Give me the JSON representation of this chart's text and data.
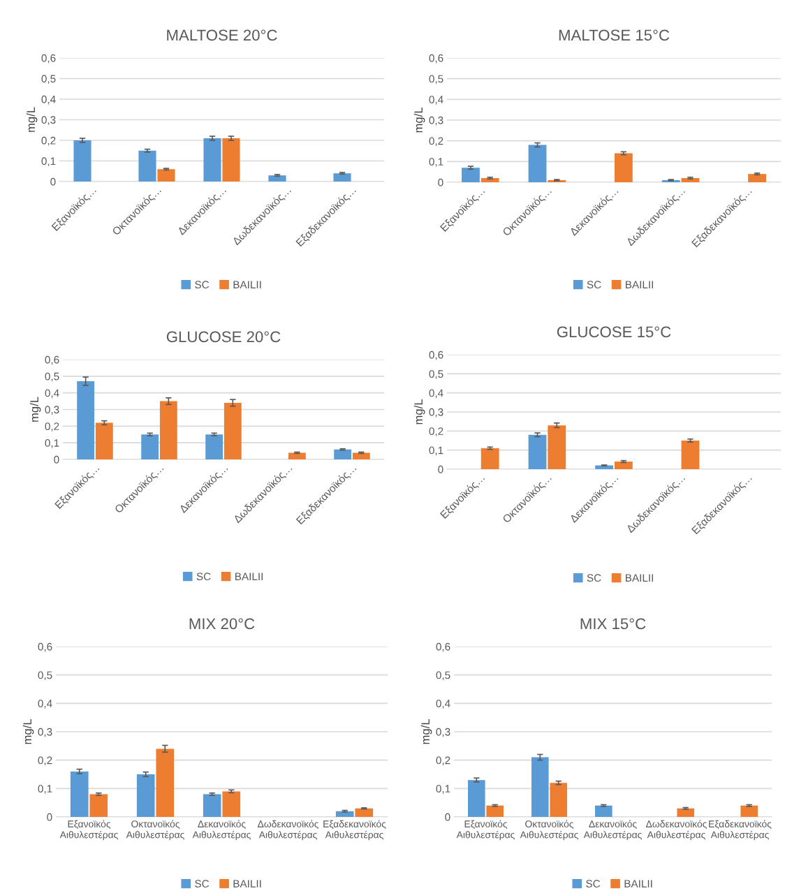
{
  "chart_data": [
    {
      "type": "bar",
      "title": "MALTOSE 20°C",
      "ylabel": "mg/L",
      "categories": [
        "Εξανοϊκός…",
        "Οκτανοϊκός…",
        "Δεκανοϊκός…",
        "Δωδεκανοϊκός…",
        "Εξαδεκανοϊκός…"
      ],
      "series": [
        {
          "name": "SC",
          "color": "#5b9bd5",
          "values": [
            0.2,
            0.15,
            0.21,
            0.03,
            0.04
          ],
          "errors": [
            0.01,
            0.007,
            0.01,
            0.004,
            0.004
          ]
        },
        {
          "name": "BAILII",
          "color": "#ed7d31",
          "values": [
            null,
            0.06,
            0.21,
            null,
            null
          ],
          "errors": [
            null,
            0.004,
            0.01,
            null,
            null
          ]
        }
      ],
      "ylim": [
        0,
        0.6
      ],
      "yticks": [
        0,
        {
          "value": 0.1,
          "label": "0,1"
        },
        {
          "value": 0.2,
          "label": "0,2"
        },
        {
          "value": 0.3,
          "label": "0,3"
        },
        {
          "value": 0.4,
          "label": "0,4"
        },
        {
          "value": 0.5,
          "label": "0,5"
        },
        {
          "value": 0.6,
          "label": "0,6"
        }
      ],
      "grid": "y",
      "legend": "bottom"
    },
    {
      "type": "bar",
      "title": "MALTOSE 15°C",
      "ylabel": "mg/L",
      "categories": [
        "Εξανοϊκός…",
        "Οκτανοϊκός…",
        "Δεκανοϊκός…",
        "Δωδεκανοϊκός…",
        "Εξαδεκανοϊκός…"
      ],
      "series": [
        {
          "name": "SC",
          "color": "#5b9bd5",
          "values": [
            0.07,
            0.18,
            null,
            0.01,
            null
          ],
          "errors": [
            0.007,
            0.01,
            null,
            0.003,
            null
          ]
        },
        {
          "name": "BAILII",
          "color": "#ed7d31",
          "values": [
            0.02,
            0.01,
            0.14,
            0.02,
            0.04
          ],
          "errors": [
            0.004,
            0.003,
            0.007,
            0.004,
            0.004
          ]
        }
      ],
      "ylim": [
        0,
        0.6
      ],
      "yticks": [
        0,
        {
          "value": 0.1,
          "label": "0,1"
        },
        {
          "value": 0.2,
          "label": "0,2"
        },
        {
          "value": 0.3,
          "label": "0,3"
        },
        {
          "value": 0.4,
          "label": "0,4"
        },
        {
          "value": 0.5,
          "label": "0,5"
        },
        {
          "value": 0.6,
          "label": "0,6"
        }
      ],
      "grid": "y",
      "legend": "bottom"
    },
    {
      "type": "bar",
      "title": "GLUCOSE 20°C",
      "ylabel": "mg/L",
      "categories": [
        "Εξανοϊκός…",
        "Οκτανοϊκός…",
        "Δεκανοϊκός…",
        "Δωδεκανοϊκός…",
        "Εξαδεκανοϊκός…"
      ],
      "series": [
        {
          "name": "SC",
          "color": "#5b9bd5",
          "values": [
            0.47,
            0.15,
            0.15,
            null,
            0.06
          ],
          "errors": [
            0.025,
            0.008,
            0.008,
            null,
            0.004
          ]
        },
        {
          "name": "BAILII",
          "color": "#ed7d31",
          "values": [
            0.22,
            0.35,
            0.34,
            0.04,
            0.04
          ],
          "errors": [
            0.012,
            0.02,
            0.02,
            0.004,
            0.004
          ]
        }
      ],
      "ylim": [
        0,
        0.6
      ],
      "yticks": [
        0,
        {
          "value": 0.1,
          "label": "0,1"
        },
        {
          "value": 0.2,
          "label": "0,2"
        },
        {
          "value": 0.3,
          "label": "0,3"
        },
        {
          "value": 0.4,
          "label": "0,4"
        },
        {
          "value": 0.5,
          "label": "0,5"
        },
        {
          "value": 0.6,
          "label": "0,6"
        }
      ],
      "grid": "y",
      "legend": "bottom"
    },
    {
      "type": "bar",
      "title": "GLUCOSE 15°C",
      "ylabel": "mg/L",
      "categories": [
        "Εξανοϊκός…",
        "Οκτανοϊκός…",
        "Δεκανοϊκός…",
        "Δωδεκανοϊκός…",
        "Εξαδεκανοϊκός…"
      ],
      "series": [
        {
          "name": "SC",
          "color": "#5b9bd5",
          "values": [
            null,
            0.18,
            0.02,
            null,
            null
          ],
          "errors": [
            null,
            0.01,
            0.002,
            null,
            null
          ]
        },
        {
          "name": "BAILII",
          "color": "#ed7d31",
          "values": [
            0.11,
            0.23,
            0.04,
            0.15,
            null
          ],
          "errors": [
            0.006,
            0.012,
            0.005,
            0.008,
            null
          ]
        }
      ],
      "ylim": [
        0,
        0.6
      ],
      "yticks": [
        0,
        {
          "value": 0.1,
          "label": "0,1"
        },
        {
          "value": 0.2,
          "label": "0,2"
        },
        {
          "value": 0.3,
          "label": "0,3"
        },
        {
          "value": 0.4,
          "label": "0,4"
        },
        {
          "value": 0.5,
          "label": "0,5"
        },
        {
          "value": 0.6,
          "label": "0,6"
        }
      ],
      "grid": "y",
      "legend": "bottom"
    },
    {
      "type": "bar",
      "title": "MIX 20°C",
      "ylabel": "mg/L",
      "categories": [
        "Εξανοϊκός\nΑιθυλεστέρας",
        "Οκτανοϊκός\nΑιθυλεστέρας",
        "Δεκανοϊκός\nΑιθυλεστέρας",
        "Δωδεκανοϊκός\nΑιθυλεστέρας",
        "Εξαδεκανοϊκός\nΑιθυλεστέρας"
      ],
      "series": [
        {
          "name": "SC",
          "color": "#5b9bd5",
          "values": [
            0.16,
            0.15,
            0.08,
            null,
            0.02
          ],
          "errors": [
            0.008,
            0.008,
            0.004,
            null,
            0.003
          ]
        },
        {
          "name": "BAILII",
          "color": "#ed7d31",
          "values": [
            0.08,
            0.24,
            0.09,
            null,
            0.03
          ],
          "errors": [
            0.004,
            0.012,
            0.005,
            null,
            0.002
          ]
        }
      ],
      "ylim": [
        0,
        0.6
      ],
      "yticks": [
        0,
        {
          "value": 0.1,
          "label": "0,1"
        },
        {
          "value": 0.2,
          "label": "0,2"
        },
        {
          "value": 0.3,
          "label": "0,3"
        },
        {
          "value": 0.4,
          "label": "0,4"
        },
        {
          "value": 0.5,
          "label": "0,5"
        },
        {
          "value": 0.6,
          "label": "0,6"
        }
      ],
      "grid": "y",
      "legend": "bottom"
    },
    {
      "type": "bar",
      "title": "MIX 15°C",
      "ylabel": "mg/L",
      "categories": [
        "Εξανοϊκός\nΑιθυλεστέρας",
        "Οκτανοϊκός\nΑιθυλεστέρας",
        "Δεκανοϊκός\nΑιθυλεστέρας",
        "Δωδεκανοϊκός\nΑιθυλεστέρας",
        "Εξαδεκανοϊκός\nΑιθυλεστέρας"
      ],
      "series": [
        {
          "name": "SC",
          "color": "#5b9bd5",
          "values": [
            0.13,
            0.21,
            0.04,
            null,
            null
          ],
          "errors": [
            0.007,
            0.01,
            0.003,
            null,
            null
          ]
        },
        {
          "name": "BAILII",
          "color": "#ed7d31",
          "values": [
            0.04,
            0.12,
            null,
            0.03,
            0.04
          ],
          "errors": [
            0.003,
            0.006,
            null,
            0.003,
            0.003
          ]
        }
      ],
      "ylim": [
        0,
        0.6
      ],
      "yticks": [
        0,
        {
          "value": 0.1,
          "label": "0,1"
        },
        {
          "value": 0.2,
          "label": "0,2"
        },
        {
          "value": 0.3,
          "label": "0,3"
        },
        {
          "value": 0.4,
          "label": "0,4"
        },
        {
          "value": 0.5,
          "label": "0,5"
        },
        {
          "value": 0.6,
          "label": "0,6"
        }
      ],
      "grid": "y",
      "legend": "bottom"
    }
  ]
}
